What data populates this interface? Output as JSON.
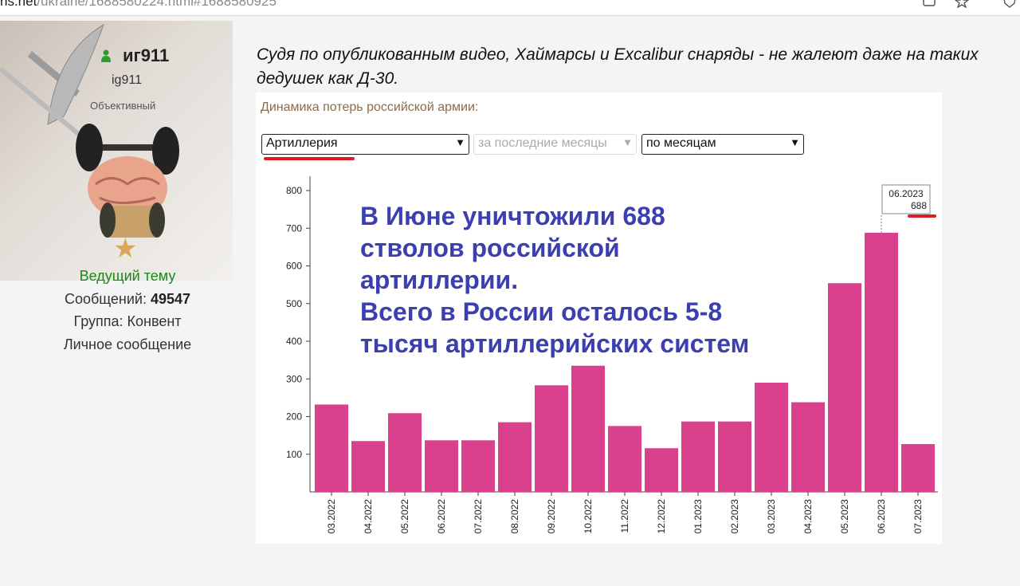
{
  "browser": {
    "url_host": "ns.net",
    "url_rest": "/ukraine/1688580224.html#1688580925"
  },
  "user": {
    "name": "иг911",
    "login": "ig911",
    "title": "Объективный",
    "role": "Ведущий тему",
    "messages_label": "Сообщений:",
    "messages_count": "49547",
    "group": "Группа: Конвент",
    "pm": "Личное сообщение"
  },
  "post": {
    "text": "Судя по опубликованным видео, Хаймарсы и Excalibur снаряды - не жалеют даже на таких дедушек как Д-30."
  },
  "chart_image": {
    "heading": "Динамика потерь российской армии:",
    "select_type": "Артиллерия",
    "select_period": "за последние месяцы",
    "select_grouping": "по месяцам",
    "headline_lines": [
      "В Июне уничтожили 688",
      "стволов российской",
      "артиллерии.",
      "Всего в России осталось 5-8",
      "тысяч артиллерийских систем"
    ],
    "tooltip_date": "06.2023",
    "tooltip_value": "688",
    "bar_color": "#d9418c"
  },
  "chart_data": {
    "type": "bar",
    "categories": [
      "03.2022",
      "04.2022",
      "05.2022",
      "06.2022",
      "07.2022",
      "08.2022",
      "09.2022",
      "10.2022",
      "11.2022",
      "12.2022",
      "01.2023",
      "02.2023",
      "03.2023",
      "04.2023",
      "05.2023",
      "06.2023",
      "07.2023"
    ],
    "values": [
      232,
      135,
      209,
      137,
      137,
      185,
      283,
      335,
      175,
      116,
      187,
      187,
      290,
      238,
      554,
      688,
      127
    ],
    "ylim": [
      0,
      800
    ],
    "yticks": [
      100,
      200,
      300,
      400,
      500,
      600,
      700,
      800
    ],
    "grid": false,
    "title": "",
    "xlabel": "",
    "ylabel": ""
  }
}
